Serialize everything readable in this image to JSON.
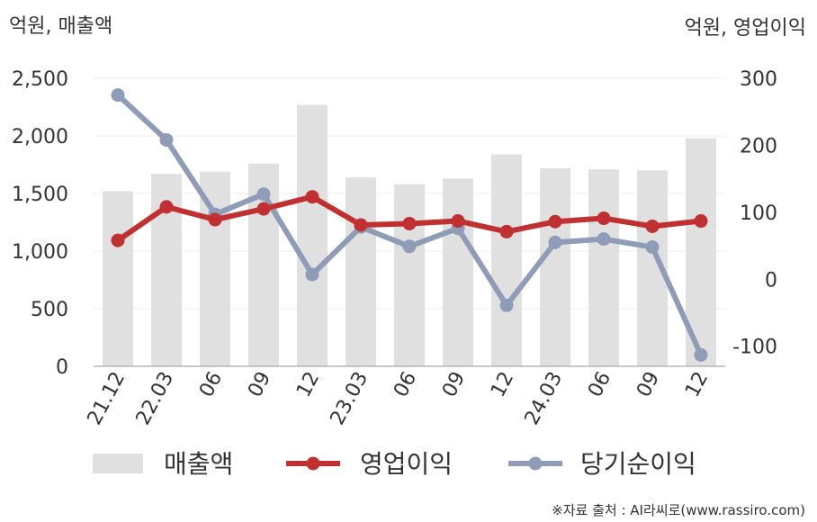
{
  "chart_data": {
    "type": "bar+line",
    "left_unit": "억원, 매출액",
    "right_unit": "억원, 영업이익",
    "categories": [
      "21.12",
      "22.03",
      "06",
      "09",
      "12",
      "23.03",
      "06",
      "09",
      "12",
      "24.03",
      "06",
      "09",
      "12"
    ],
    "left_axis": {
      "range": [
        0,
        2500
      ],
      "ticks": [
        0,
        500,
        1000,
        1500,
        2000,
        2500
      ],
      "tick_labels": [
        "0",
        "500",
        "1,000",
        "1,500",
        "2,000",
        "2,500"
      ]
    },
    "right_axis": {
      "range": [
        -130,
        300
      ],
      "ticks": [
        -100,
        0,
        100,
        200,
        300
      ],
      "tick_labels": [
        "-100",
        "0",
        "100",
        "200",
        "300"
      ]
    },
    "series": [
      {
        "name": "매출액",
        "kind": "bar",
        "axis": "left",
        "color": "#e0e0e0",
        "values": [
          1520,
          1670,
          1690,
          1760,
          2270,
          1640,
          1580,
          1630,
          1840,
          1720,
          1710,
          1700,
          1980
        ]
      },
      {
        "name": "영업이익",
        "kind": "line",
        "axis": "right",
        "color": "#c03030",
        "values": [
          58,
          108,
          89,
          105,
          123,
          81,
          83,
          87,
          71,
          86,
          91,
          79,
          87
        ]
      },
      {
        "name": "당기순이익",
        "kind": "line",
        "axis": "right",
        "color": "#8f9cb8",
        "values": [
          275,
          208,
          97,
          127,
          7,
          78,
          49,
          76,
          -39,
          55,
          60,
          48,
          -113
        ]
      }
    ],
    "grid": true,
    "legend_position": "bottom"
  },
  "source": "※자료 출처 : AI라씨로(www.rassiro.com)"
}
